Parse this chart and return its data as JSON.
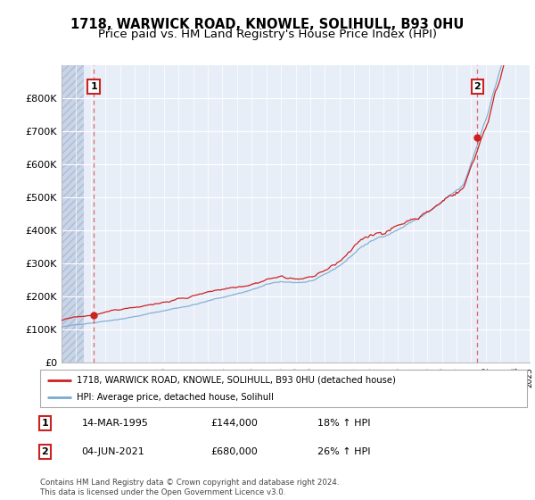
{
  "title": "1718, WARWICK ROAD, KNOWLE, SOLIHULL, B93 0HU",
  "subtitle": "Price paid vs. HM Land Registry's House Price Index (HPI)",
  "ylim": [
    0,
    900000
  ],
  "ytick_labels": [
    "£0",
    "£100K",
    "£200K",
    "£300K",
    "£400K",
    "£500K",
    "£600K",
    "£700K",
    "£800K"
  ],
  "ytick_values": [
    0,
    100000,
    200000,
    300000,
    400000,
    500000,
    600000,
    700000,
    800000
  ],
  "background_color": "#e8eef8",
  "hatch_color": "#c8d4e8",
  "grid_color": "#ffffff",
  "sale1_year": 1995.2,
  "sale1_price": 144000,
  "sale2_year": 2021.43,
  "sale2_price": 680000,
  "legend_line1": "1718, WARWICK ROAD, KNOWLE, SOLIHULL, B93 0HU (detached house)",
  "legend_line2": "HPI: Average price, detached house, Solihull",
  "footer": "Contains HM Land Registry data © Crown copyright and database right 2024.\nThis data is licensed under the Open Government Licence v3.0.",
  "red_color": "#cc2222",
  "blue_color": "#7aaad0",
  "title_fontsize": 10.5,
  "subtitle_fontsize": 9.5,
  "xstart": 1993,
  "xend": 2025
}
